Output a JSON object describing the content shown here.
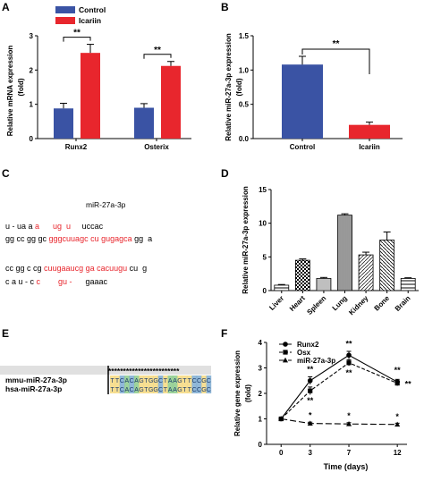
{
  "panels": {
    "A": "A",
    "B": "B",
    "C": "C",
    "D": "D",
    "E": "E",
    "F": "F"
  },
  "chart_data": [
    {
      "panel": "A",
      "type": "bar",
      "categories": [
        "Runx2",
        "Osterix"
      ],
      "series": [
        {
          "name": "Control",
          "values": [
            0.88,
            0.9
          ],
          "errors": [
            0.15,
            0.12
          ],
          "color": "#3a53a4"
        },
        {
          "name": "Icariin",
          "values": [
            2.5,
            2.12
          ],
          "errors": [
            0.25,
            0.13
          ],
          "color": "#e8262d"
        }
      ],
      "ylabel": "Relative mRNA expression",
      "ylabel2": "(fold)",
      "ylim": [
        0,
        3
      ],
      "yticks": [
        "0",
        "1",
        "2",
        "3"
      ],
      "significance": [
        "**",
        "**"
      ],
      "legend_position": "top-left"
    },
    {
      "panel": "B",
      "type": "bar",
      "categories": [
        "Control",
        "Icariin"
      ],
      "values": [
        1.08,
        0.2
      ],
      "errors": [
        0.12,
        0.04
      ],
      "colors": [
        "#3a53a4",
        "#e8262d"
      ],
      "ylabel": "Relative miR-27a-3p expression",
      "ylabel2": "(fold)",
      "ylim": [
        0,
        1.5
      ],
      "yticks": [
        "0.0",
        "0.5",
        "1.0",
        "1.5"
      ],
      "significance": "**"
    },
    {
      "panel": "D",
      "type": "bar",
      "categories": [
        "Liver",
        "Heart",
        "Spleen",
        "Lung",
        "Kidney",
        "Bone",
        "Brain"
      ],
      "values": [
        0.8,
        4.5,
        1.8,
        11.2,
        5.3,
        7.5,
        1.8
      ],
      "errors": [
        0.1,
        0.2,
        0.15,
        0.2,
        0.4,
        1.2,
        0.1
      ],
      "ylabel": "Relative miR-27a-3p expression",
      "ylim": [
        0,
        15
      ],
      "yticks": [
        "0",
        "5",
        "10",
        "15"
      ]
    },
    {
      "panel": "F",
      "type": "line",
      "x": [
        0,
        3,
        7,
        12
      ],
      "xticks": [
        "0",
        "3",
        "7",
        "12"
      ],
      "series": [
        {
          "name": "Runx2",
          "values": [
            1.0,
            2.5,
            3.5,
            2.45
          ],
          "errors": [
            0,
            0.15,
            0.15,
            0.1
          ],
          "marker": "circle",
          "dash": "solid",
          "stars": [
            "",
            "**",
            "**",
            "**"
          ]
        },
        {
          "name": "Osx",
          "values": [
            1.0,
            2.1,
            3.2,
            2.4
          ],
          "errors": [
            0,
            0.15,
            0.12,
            0.1
          ],
          "marker": "square",
          "dash": "short",
          "stars": [
            "",
            "**",
            "**",
            "**"
          ]
        },
        {
          "name": "miR-27a-3p",
          "values": [
            1.0,
            0.82,
            0.8,
            0.78
          ],
          "errors": [
            0,
            0.05,
            0.05,
            0.05
          ],
          "marker": "triangle",
          "dash": "long",
          "stars": [
            "",
            "*",
            "*",
            "*"
          ]
        }
      ],
      "xlabel": "Time (days)",
      "ylabel": "Relative gene expression",
      "ylabel2": "(fold)",
      "ylim": [
        0,
        4
      ],
      "xlim": [
        -1.5,
        13
      ],
      "yticks": [
        "0",
        "1",
        "2",
        "3",
        "4"
      ]
    }
  ],
  "panel_c": {
    "title": "miR-27a-3p",
    "rows": [
      [
        {
          "t": "u - ua a ",
          "c": "#000"
        },
        {
          "t": "a",
          "c": "#e8262d"
        },
        {
          "t": "      ug  u",
          "c": "#e8262d"
        },
        {
          "t": "     uccac",
          "c": "#000"
        }
      ],
      [
        {
          "t": "gg cc gg gc ",
          "c": "#000"
        },
        {
          "t": "gggcuuagc cu gugagca",
          "c": "#e8262d"
        },
        {
          "t": " gg  a",
          "c": "#000"
        }
      ],
      [
        {
          "t": "cc gg c cg ",
          "c": "#000"
        },
        {
          "t": "cuugaaucg ga cacuugu",
          "c": "#e8262d"
        },
        {
          "t": " cu  g",
          "c": "#000"
        }
      ],
      [
        {
          "t": "c a u - c ",
          "c": "#000"
        },
        {
          "t": "c",
          "c": "#e8262d"
        },
        {
          "t": "        gu -",
          "c": "#e8262d"
        },
        {
          "t": "      gaaac",
          "c": "#000"
        }
      ]
    ]
  },
  "panel_e": {
    "stars": "************************",
    "labels": [
      "mmu-miR-27a-3p",
      "hsa-miR-27a-3p"
    ],
    "sequence": "TTCACAGTGGCTAAGTTCCGC"
  }
}
